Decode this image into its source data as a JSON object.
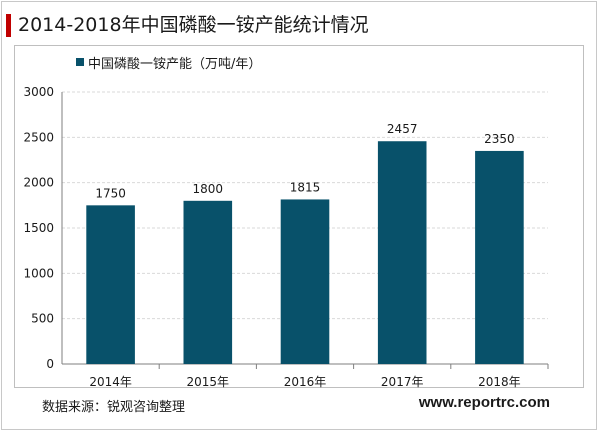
{
  "colors": {
    "bar": "#08516a",
    "accent": "#c00000",
    "grid": "#d9d9d9"
  },
  "header": {
    "title": "2014-2018年中国磷酸一铵产能统计情况"
  },
  "footer": {
    "source": "数据来源：锐观咨询整理",
    "site": "www.reportrc.com"
  },
  "chart_data": {
    "type": "bar",
    "title": "2014-2018年中国磷酸一铵产能统计情况",
    "categories": [
      "2014年",
      "2015年",
      "2016年",
      "2017年",
      "2018年"
    ],
    "series": [
      {
        "name": "中国磷酸一铵产能（万吨/年）",
        "values": [
          1750,
          1800,
          1815,
          2457,
          2350
        ]
      }
    ],
    "ylim": [
      0,
      3000
    ],
    "yticks": [
      0,
      500,
      1000,
      1500,
      2000,
      2500,
      3000
    ],
    "grid": true,
    "legend": "top-left",
    "data_labels": true
  }
}
